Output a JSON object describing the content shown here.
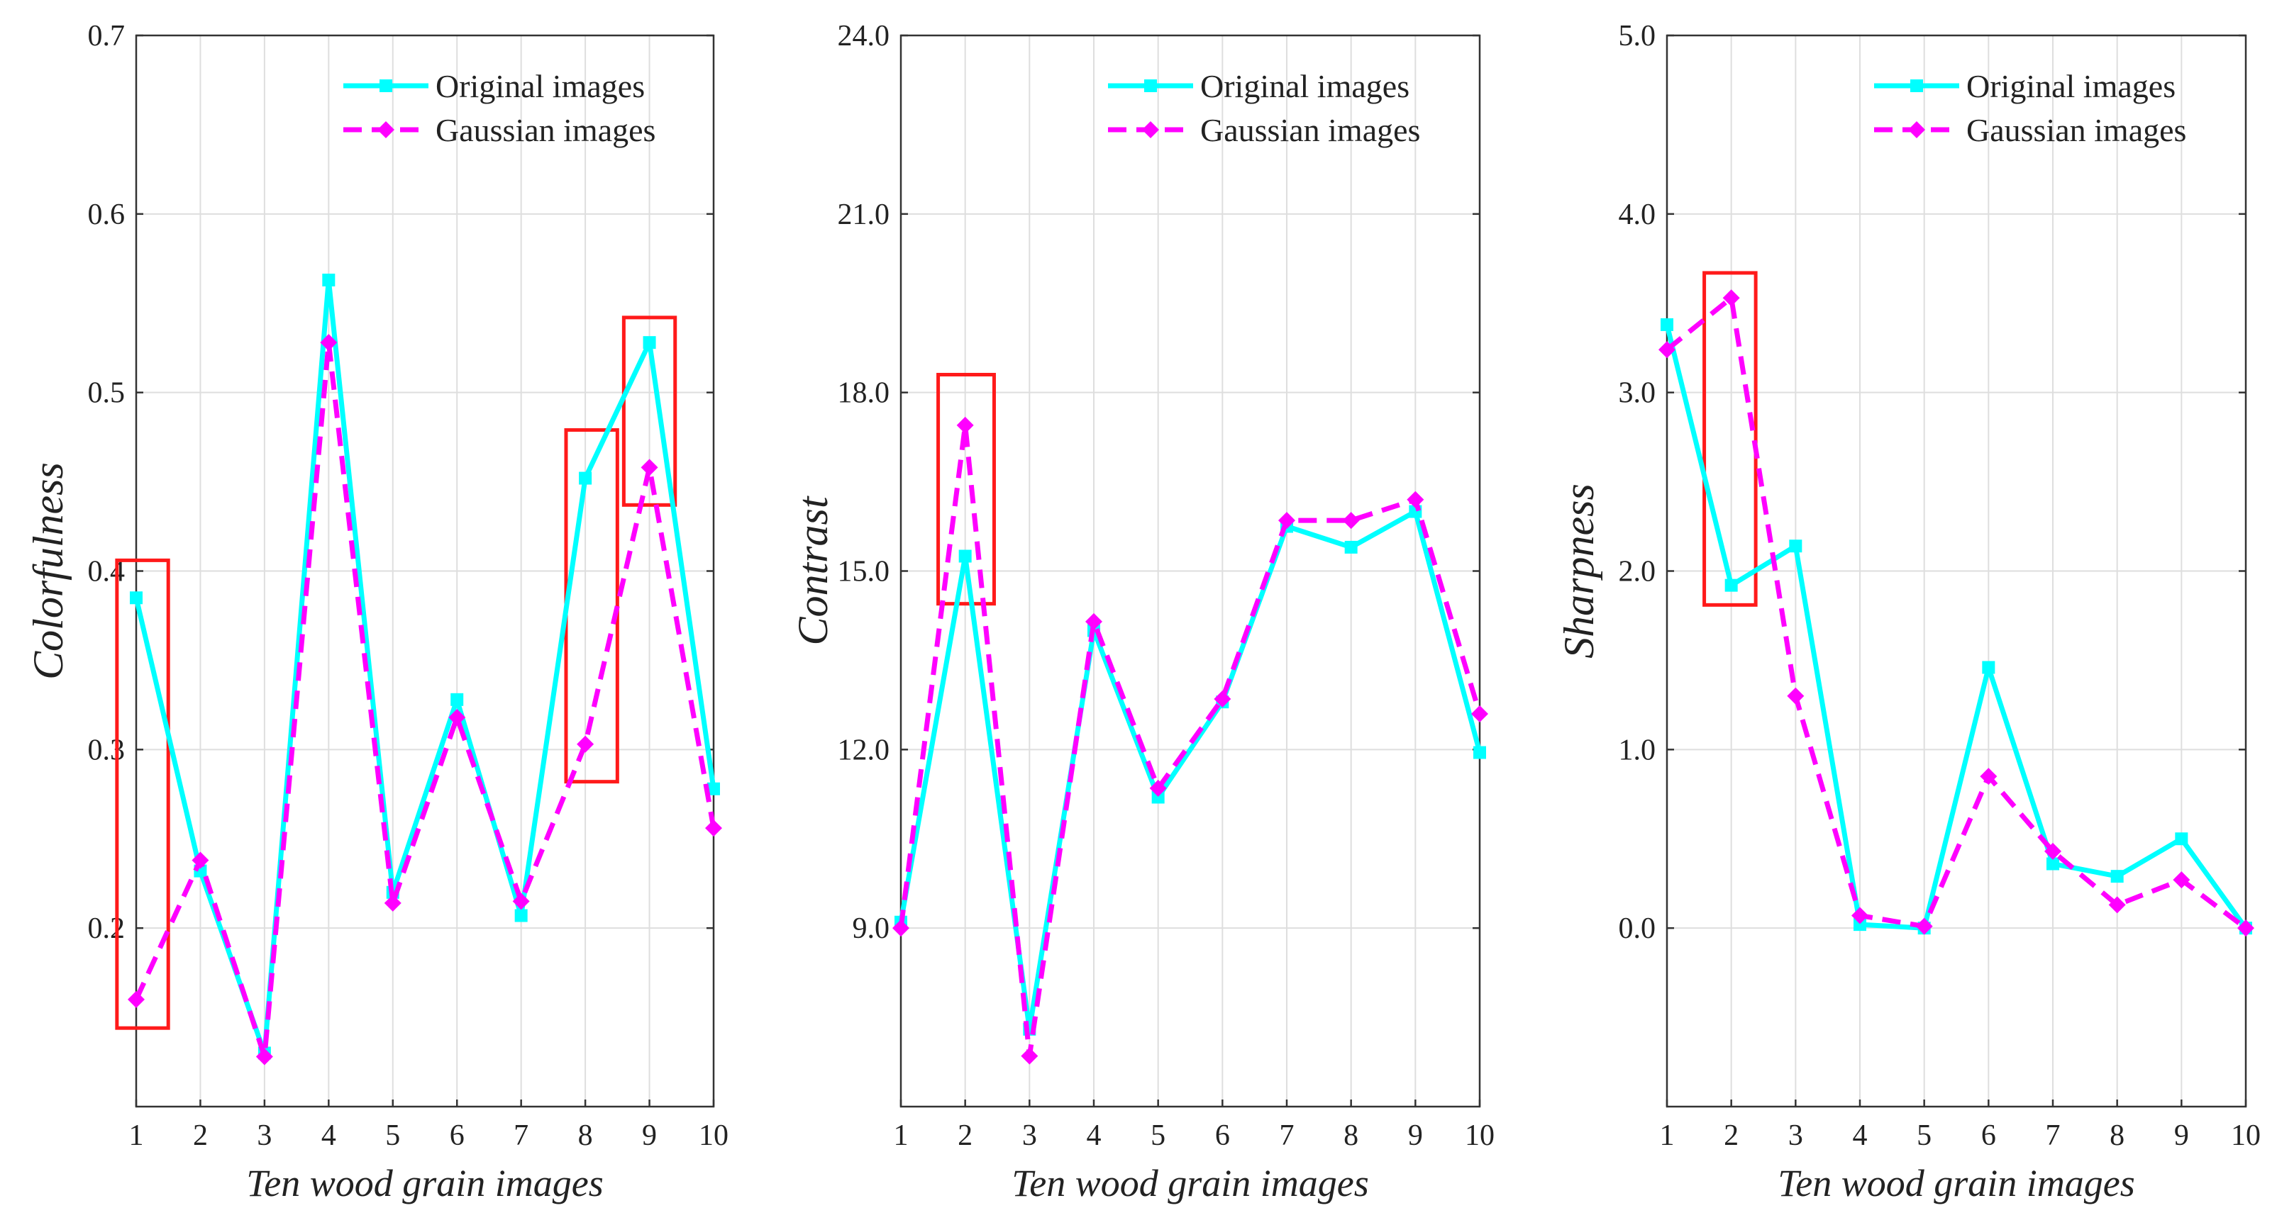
{
  "chart_data": [
    {
      "type": "line",
      "title": "",
      "xlabel": "Ten wood grain images",
      "ylabel": "Colorfulness",
      "categories": [
        "1",
        "2",
        "3",
        "4",
        "5",
        "6",
        "7",
        "8",
        "9",
        "10"
      ],
      "xlim": [
        1,
        10
      ],
      "ylim": [
        0.1,
        0.7
      ],
      "yticks": [
        0.2,
        0.3,
        0.4,
        0.5,
        0.6,
        0.7
      ],
      "ytick_labels": [
        "0.2",
        "0.3",
        "0.4",
        "0.5",
        "0.6",
        "0.7"
      ],
      "grid": true,
      "legend_position": "top-right",
      "series": [
        {
          "name": "Original images",
          "color": "#00ffff",
          "style": "solid",
          "marker": "square",
          "values": [
            0.385,
            0.232,
            0.13,
            0.563,
            0.22,
            0.328,
            0.207,
            0.452,
            0.528,
            0.278
          ]
        },
        {
          "name": "Gaussian images",
          "color": "#ff00ff",
          "style": "dashed",
          "marker": "diamond",
          "values": [
            0.16,
            0.238,
            0.128,
            0.528,
            0.214,
            0.318,
            0.215,
            0.303,
            0.458,
            0.256
          ]
        }
      ],
      "highlights": [
        {
          "x": [
            0.7,
            1.5
          ],
          "y": [
            0.144,
            0.406
          ]
        },
        {
          "x": [
            7.7,
            8.5
          ],
          "y": [
            0.282,
            0.479
          ]
        },
        {
          "x": [
            8.6,
            9.4
          ],
          "y": [
            0.437,
            0.542
          ]
        }
      ]
    },
    {
      "type": "line",
      "title": "",
      "xlabel": "Ten wood grain images",
      "ylabel": "Contrast",
      "categories": [
        "1",
        "2",
        "3",
        "4",
        "5",
        "6",
        "7",
        "8",
        "9",
        "10"
      ],
      "xlim": [
        1,
        10
      ],
      "ylim": [
        6.0,
        24.0
      ],
      "yticks": [
        9.0,
        12.0,
        15.0,
        18.0,
        21.0,
        24.0
      ],
      "ytick_labels": [
        "9.0",
        "12.0",
        "15.0",
        "18.0",
        "21.0",
        "24.0"
      ],
      "grid": true,
      "legend_position": "top-right",
      "series": [
        {
          "name": "Original images",
          "color": "#00ffff",
          "style": "solid",
          "marker": "square",
          "values": [
            9.1,
            15.25,
            7.3,
            14.0,
            11.2,
            12.8,
            15.75,
            15.4,
            16.0,
            11.95
          ]
        },
        {
          "name": "Gaussian images",
          "color": "#ff00ff",
          "style": "dashed",
          "marker": "diamond",
          "values": [
            9.0,
            17.45,
            6.85,
            14.15,
            11.35,
            12.85,
            15.85,
            15.85,
            16.2,
            12.6
          ]
        }
      ],
      "highlights": [
        {
          "x": [
            1.58,
            2.45
          ],
          "y": [
            14.45,
            18.3
          ]
        }
      ]
    },
    {
      "type": "line",
      "title": "",
      "xlabel": "Ten wood grain images",
      "ylabel": "Sharpness",
      "categories": [
        "1",
        "2",
        "3",
        "4",
        "5",
        "6",
        "7",
        "8",
        "9",
        "10"
      ],
      "xlim": [
        1,
        10
      ],
      "ylim": [
        -1.0,
        5.0
      ],
      "yticks": [
        0.0,
        1.0,
        2.0,
        3.0,
        4.0,
        5.0
      ],
      "ytick_labels": [
        "0.0",
        "1.0",
        "2.0",
        "3.0",
        "4.0",
        "5.0"
      ],
      "grid": true,
      "legend_position": "top-right",
      "series": [
        {
          "name": "Original images",
          "color": "#00ffff",
          "style": "solid",
          "marker": "square",
          "values": [
            3.38,
            1.92,
            2.14,
            0.02,
            0.0,
            1.46,
            0.36,
            0.29,
            0.5,
            0.0
          ]
        },
        {
          "name": "Gaussian images",
          "color": "#ff00ff",
          "style": "dashed",
          "marker": "diamond",
          "values": [
            3.24,
            3.53,
            1.3,
            0.07,
            0.01,
            0.85,
            0.43,
            0.13,
            0.27,
            0.0
          ]
        }
      ],
      "highlights": [
        {
          "x": [
            1.58,
            2.38
          ],
          "y": [
            1.81,
            3.67
          ]
        }
      ]
    }
  ]
}
